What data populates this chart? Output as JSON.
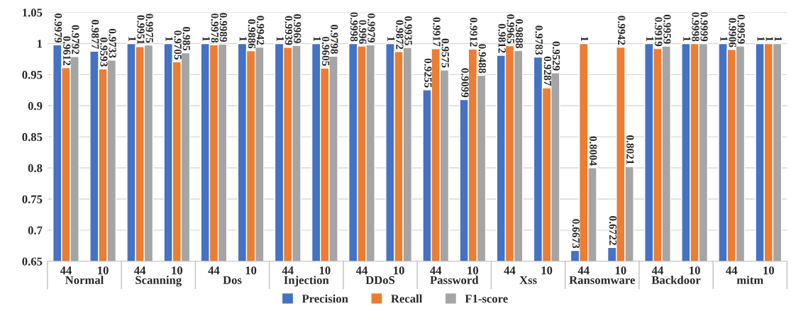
{
  "chart_data": {
    "type": "bar",
    "categories": [
      "44",
      "10",
      "44",
      "10",
      "44",
      "10",
      "44",
      "10",
      "44",
      "10",
      "44",
      "10",
      "44",
      "10",
      "44",
      "10",
      "44",
      "10",
      "44",
      "10"
    ],
    "annotations": [
      "Normal",
      "Scanning",
      "Dos",
      "Injection",
      "DDoS",
      "Password",
      "Xss",
      "Ransomware",
      "Backdoor",
      "mitm"
    ],
    "series": [
      {
        "name": "Precision",
        "color": "#4472c4",
        "values": [
          0.9979,
          0.9877,
          1,
          1,
          1,
          1,
          1,
          1,
          0.9998,
          1,
          0.9255,
          0.9099,
          0.9812,
          0.9783,
          0.6673,
          0.6722,
          1,
          1,
          1,
          1
        ]
      },
      {
        "name": "Recall",
        "color": "#ed7d31",
        "values": [
          0.9612,
          0.9593,
          0.9951,
          0.9705,
          0.9978,
          0.9886,
          0.9939,
          0.9605,
          0.996,
          0.9872,
          0.9917,
          0.9912,
          0.9965,
          0.9287,
          1,
          0.9942,
          0.9919,
          0.9998,
          0.9906,
          1
        ]
      },
      {
        "name": "F1-score",
        "color": "#a5a5a5",
        "values": [
          0.9792,
          0.9733,
          0.9975,
          0.985,
          0.9989,
          0.9942,
          0.9969,
          0.9798,
          0.9979,
          0.9935,
          0.9575,
          0.9488,
          0.9888,
          0.9529,
          0.8004,
          0.8021,
          0.9959,
          0.9999,
          0.9959,
          1
        ]
      }
    ],
    "ylim": [
      0.65,
      1.05
    ],
    "yticks": [
      0.65,
      0.7,
      0.75,
      0.8,
      0.85,
      0.9,
      0.95,
      1,
      1.05
    ],
    "grid": "y",
    "legend": "bottom",
    "data_labels": true
  }
}
